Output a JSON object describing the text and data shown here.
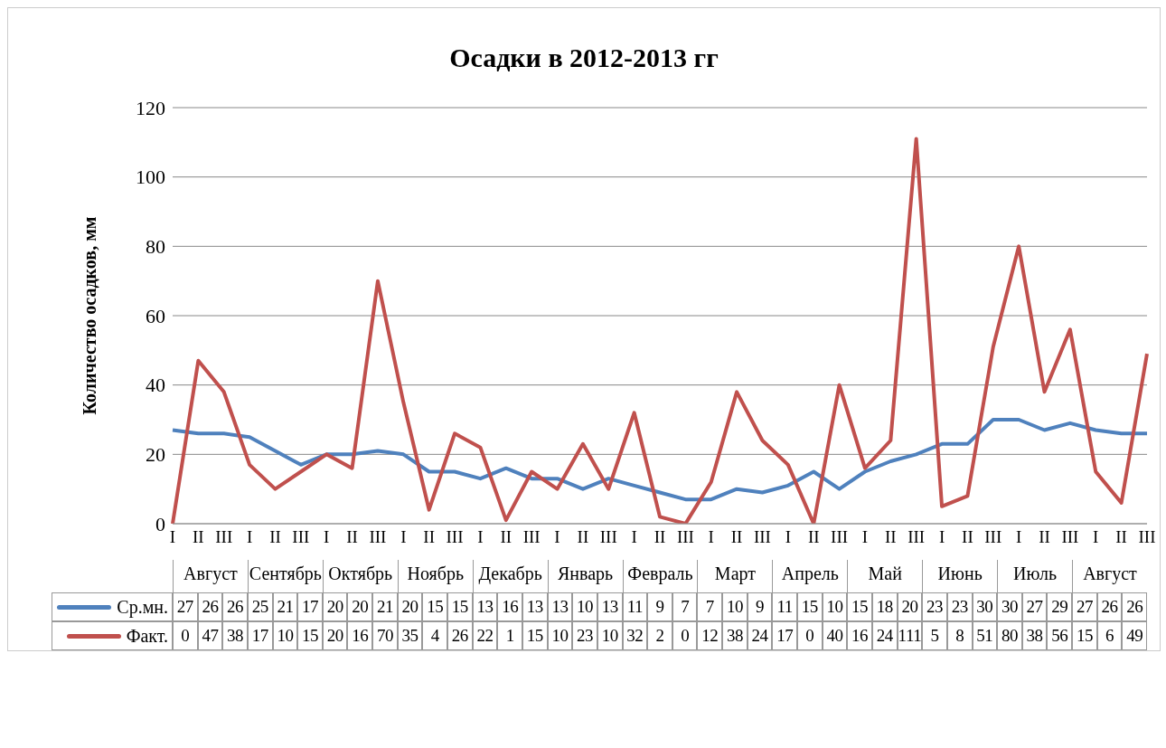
{
  "chart_data": {
    "type": "line",
    "title": "Осадки в 2012-2013 гг",
    "ylabel": "Количество осадков, мм",
    "categories": [
      "I",
      "II",
      "III",
      "I",
      "II",
      "III",
      "I",
      "II",
      "III",
      "I",
      "II",
      "III",
      "I",
      "II",
      "III",
      "I",
      "II",
      "III",
      "I",
      "II",
      "III",
      "I",
      "II",
      "III",
      "I",
      "II",
      "III",
      "I",
      "II",
      "III",
      "I",
      "II",
      "III",
      "I",
      "II",
      "III",
      "I",
      "II",
      "III"
    ],
    "annotations": [
      "Август",
      "Сентябрь",
      "Октябрь",
      "Ноябрь",
      "Декабрь",
      "Январь",
      "Февраль",
      "Март",
      "Апрель",
      "Май",
      "Июнь",
      "Июль",
      "Август"
    ],
    "series": [
      {
        "name": "Ср.мн.",
        "color": "#4f81bd",
        "values": [
          27,
          26,
          26,
          25,
          21,
          17,
          20,
          20,
          21,
          20,
          15,
          15,
          13,
          16,
          13,
          13,
          10,
          13,
          11,
          9,
          7,
          7,
          10,
          9,
          11,
          15,
          10,
          15,
          18,
          20,
          23,
          23,
          30,
          30,
          27,
          29,
          27,
          26,
          26
        ]
      },
      {
        "name": "Факт.",
        "color": "#c0504d",
        "values": [
          0,
          47,
          38,
          17,
          10,
          15,
          20,
          16,
          70,
          35,
          4,
          26,
          22,
          1,
          15,
          10,
          23,
          10,
          32,
          2,
          0,
          12,
          38,
          24,
          17,
          0,
          40,
          16,
          24,
          111,
          5,
          8,
          51,
          80,
          38,
          56,
          15,
          6,
          49
        ]
      }
    ],
    "ylim": [
      0,
      120
    ],
    "yticks": [
      0,
      20,
      40,
      60,
      80,
      100,
      120
    ],
    "grid": "y",
    "legend": "bottom",
    "marker": "none",
    "line_style": "solid",
    "data_labels": true
  }
}
